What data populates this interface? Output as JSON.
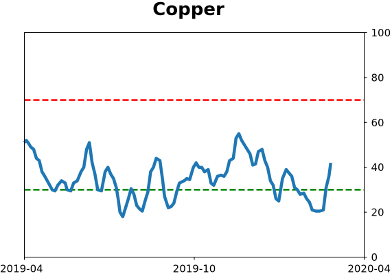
{
  "chart_data": {
    "type": "line",
    "title": "Copper",
    "xlabel": "",
    "ylabel": "",
    "x_ticks": [
      "2019-04",
      "2019-10",
      "2020-04"
    ],
    "xlim": [
      "2019-04-01",
      "2020-04-01"
    ],
    "ylim": [
      0,
      100
    ],
    "y_ticks": [
      0,
      20,
      40,
      60,
      80,
      100
    ],
    "y_axis_side": "right",
    "grid": false,
    "legend": "none",
    "series": [
      {
        "color": "#1f77b4",
        "points": [
          [
            "2019-04-01",
            51
          ],
          [
            "2019-04-03",
            52
          ],
          [
            "2019-04-05",
            51
          ],
          [
            "2019-04-08",
            49
          ],
          [
            "2019-04-11",
            48
          ],
          [
            "2019-04-14",
            44
          ],
          [
            "2019-04-17",
            43
          ],
          [
            "2019-04-20",
            38
          ],
          [
            "2019-04-23",
            36
          ],
          [
            "2019-04-27",
            33
          ],
          [
            "2019-05-01",
            30
          ],
          [
            "2019-05-04",
            29.5
          ],
          [
            "2019-05-07",
            32
          ],
          [
            "2019-05-11",
            34
          ],
          [
            "2019-05-15",
            33
          ],
          [
            "2019-05-17",
            30
          ],
          [
            "2019-05-21",
            29.5
          ],
          [
            "2019-05-24",
            33
          ],
          [
            "2019-05-28",
            34
          ],
          [
            "2019-06-01",
            38
          ],
          [
            "2019-06-04",
            40
          ],
          [
            "2019-06-07",
            48
          ],
          [
            "2019-06-10",
            51
          ],
          [
            "2019-06-13",
            42
          ],
          [
            "2019-06-16",
            37
          ],
          [
            "2019-06-19",
            30
          ],
          [
            "2019-06-23",
            29.5
          ],
          [
            "2019-06-27",
            38
          ],
          [
            "2019-06-30",
            40
          ],
          [
            "2019-07-03",
            37
          ],
          [
            "2019-07-06",
            35
          ],
          [
            "2019-07-09",
            31
          ],
          [
            "2019-07-11",
            26
          ],
          [
            "2019-07-13",
            20
          ],
          [
            "2019-07-16",
            18
          ],
          [
            "2019-07-19",
            22
          ],
          [
            "2019-07-22",
            26
          ],
          [
            "2019-07-25",
            30.5
          ],
          [
            "2019-07-28",
            28
          ],
          [
            "2019-07-31",
            23
          ],
          [
            "2019-08-03",
            21.5
          ],
          [
            "2019-08-06",
            20.5
          ],
          [
            "2019-08-09",
            25
          ],
          [
            "2019-08-12",
            29
          ],
          [
            "2019-08-15",
            38
          ],
          [
            "2019-08-18",
            40
          ],
          [
            "2019-08-21",
            44
          ],
          [
            "2019-08-25",
            43
          ],
          [
            "2019-08-28",
            34
          ],
          [
            "2019-08-30",
            27
          ],
          [
            "2019-09-03",
            22
          ],
          [
            "2019-09-06",
            22.5
          ],
          [
            "2019-09-09",
            24
          ],
          [
            "2019-09-12",
            29
          ],
          [
            "2019-09-15",
            33
          ],
          [
            "2019-09-20",
            34
          ],
          [
            "2019-09-23",
            35
          ],
          [
            "2019-09-26",
            34.5
          ],
          [
            "2019-09-30",
            40
          ],
          [
            "2019-10-03",
            42
          ],
          [
            "2019-10-06",
            40
          ],
          [
            "2019-10-09",
            40
          ],
          [
            "2019-10-12",
            38
          ],
          [
            "2019-10-16",
            39
          ],
          [
            "2019-10-19",
            33
          ],
          [
            "2019-10-22",
            32
          ],
          [
            "2019-10-26",
            36
          ],
          [
            "2019-10-30",
            36.5
          ],
          [
            "2019-11-02",
            36
          ],
          [
            "2019-11-05",
            38
          ],
          [
            "2019-11-08",
            43
          ],
          [
            "2019-11-12",
            44
          ],
          [
            "2019-11-15",
            53
          ],
          [
            "2019-11-18",
            55
          ],
          [
            "2019-11-21",
            52
          ],
          [
            "2019-11-24",
            50
          ],
          [
            "2019-11-27",
            48
          ],
          [
            "2019-11-30",
            46
          ],
          [
            "2019-12-03",
            41
          ],
          [
            "2019-12-06",
            41.5
          ],
          [
            "2019-12-09",
            47
          ],
          [
            "2019-12-13",
            48
          ],
          [
            "2019-12-16",
            43
          ],
          [
            "2019-12-19",
            40
          ],
          [
            "2019-12-22",
            34
          ],
          [
            "2019-12-25",
            32
          ],
          [
            "2019-12-28",
            26
          ],
          [
            "2019-12-31",
            25
          ],
          [
            "2020-01-04",
            35
          ],
          [
            "2020-01-08",
            39
          ],
          [
            "2020-01-11",
            37.5
          ],
          [
            "2020-01-14",
            36
          ],
          [
            "2020-01-17",
            31
          ],
          [
            "2020-01-20",
            30
          ],
          [
            "2020-01-23",
            28
          ],
          [
            "2020-01-27",
            28.5
          ],
          [
            "2020-01-30",
            26
          ],
          [
            "2020-02-02",
            24.5
          ],
          [
            "2020-02-05",
            21
          ],
          [
            "2020-02-09",
            20.5
          ],
          [
            "2020-02-13",
            20.5
          ],
          [
            "2020-02-17",
            21
          ],
          [
            "2020-02-20",
            31
          ],
          [
            "2020-02-23",
            36
          ],
          [
            "2020-02-25",
            42
          ]
        ]
      }
    ],
    "reference_lines": [
      {
        "y": 70,
        "color": "#ff0000",
        "style": "dashed"
      },
      {
        "y": 30,
        "color": "#008000",
        "style": "dashed"
      }
    ]
  }
}
